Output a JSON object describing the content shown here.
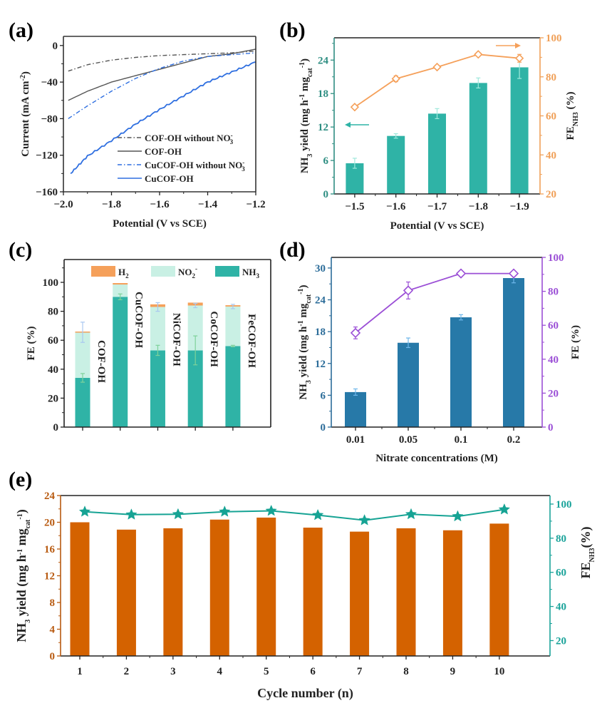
{
  "panels": {
    "a": {
      "label": "(a)"
    },
    "b": {
      "label": "(b)"
    },
    "c": {
      "label": "(c)"
    },
    "d": {
      "label": "(d)"
    },
    "e": {
      "label": "(e)"
    }
  },
  "colors": {
    "teal": "#2fb3a6",
    "orange": "#f5a05a",
    "light_teal": "#c9f0e4",
    "blue_bar": "#2779a8",
    "purple": "#9b4fd6",
    "brown": "#d46200",
    "teal_line": "#16a394",
    "gray_line": "#555555",
    "blue_line": "#2f6fe0",
    "axis_blue_d": "#2b6c99",
    "axis_teal_b": "#2e8e82",
    "axis_orange_b": "#f0a058",
    "axis_brown_e": "#b85a10",
    "axis_teal_e": "#1aa39a"
  },
  "chart_data": [
    {
      "id": "a",
      "type": "line",
      "title": "",
      "xlabel": "Potential (V vs SCE)",
      "ylabel": "Current (mA cm-2)",
      "xlim": [
        -2.0,
        -1.2
      ],
      "ylim": [
        -160,
        10
      ],
      "xticks": [
        -2.0,
        -1.8,
        -1.6,
        -1.4,
        -1.2
      ],
      "xtick_labels": [
        "−2.0",
        "−1.8",
        "−1.6",
        "−1.4",
        "−1.2"
      ],
      "yticks": [
        0,
        -40,
        -80,
        -120,
        -160
      ],
      "ytick_labels": [
        "0",
        "−40",
        "−80",
        "−120",
        "−160"
      ],
      "legend_position": "bottom-right",
      "series": [
        {
          "name": "COF-OH without NO3-",
          "legend_main": "COF-OH without NO",
          "legend_sub": "3",
          "legend_sup": "-",
          "style": "dashdot",
          "color": "#555555",
          "x": [
            -1.98,
            -1.9,
            -1.8,
            -1.7,
            -1.6,
            -1.5,
            -1.4,
            -1.3,
            -1.2
          ],
          "y": [
            -28,
            -21,
            -16,
            -13,
            -11,
            -10,
            -9,
            -8,
            -6
          ]
        },
        {
          "name": "COF-OH",
          "legend_main": "COF-OH",
          "legend_sub": "",
          "legend_sup": "",
          "style": "solid",
          "color": "#555555",
          "x": [
            -1.98,
            -1.9,
            -1.8,
            -1.7,
            -1.6,
            -1.5,
            -1.4,
            -1.3,
            -1.2
          ],
          "y": [
            -60,
            -50,
            -40,
            -33,
            -26,
            -19,
            -12,
            -9,
            -4
          ]
        },
        {
          "name": "CuCOF-OH without NO3-",
          "legend_main": "CuCOF-OH without NO",
          "legend_sub": "3",
          "legend_sup": "-",
          "style": "dashdot",
          "color": "#2f6fe0",
          "x": [
            -1.98,
            -1.9,
            -1.8,
            -1.7,
            -1.6,
            -1.5,
            -1.4,
            -1.3,
            -1.2
          ],
          "y": [
            -80,
            -66,
            -50,
            -36,
            -25,
            -17,
            -12,
            -10,
            -8
          ]
        },
        {
          "name": "CuCOF-OH",
          "legend_main": "CuCOF-OH",
          "legend_sub": "",
          "legend_sup": "",
          "style": "solid",
          "color": "#2f6fe0",
          "x": [
            -1.97,
            -1.9,
            -1.8,
            -1.7,
            -1.6,
            -1.5,
            -1.4,
            -1.3,
            -1.2
          ],
          "y": [
            -140,
            -121,
            -104,
            -86,
            -70,
            -55,
            -40,
            -29,
            -18
          ]
        }
      ]
    },
    {
      "id": "b",
      "type": "bar",
      "xlabel": "Potential (V vs SCE)",
      "ylabel": "NH3 yield (mg h-1 mgcat-1)",
      "ylabel_right": "FE NH3 (%)",
      "categories": [
        "−1.5",
        "−1.6",
        "−1.7",
        "−1.8",
        "−1.9"
      ],
      "ylim": [
        0,
        28
      ],
      "yticks": [
        0,
        6,
        12,
        18,
        24
      ],
      "ylim_right": [
        20,
        100
      ],
      "yticks_right": [
        20,
        40,
        60,
        80,
        100
      ],
      "series": [
        {
          "name": "NH3 yield",
          "axis": "left",
          "kind": "bar",
          "values": [
            5.5,
            10.4,
            14.4,
            19.9,
            22.7
          ],
          "errors": [
            0.9,
            0.4,
            0.9,
            0.9,
            2.0
          ]
        },
        {
          "name": "FE NH3",
          "axis": "right",
          "kind": "line",
          "marker": "diamond",
          "values": [
            64.5,
            79.0,
            85.0,
            91.5,
            89.5
          ],
          "errors": [
            0.5,
            1.5,
            0.5,
            0.5,
            2.0
          ]
        }
      ],
      "annotations": [
        "left arrow pointing to left axis",
        "right arrow pointing to right axis"
      ]
    },
    {
      "id": "c",
      "type": "bar",
      "stacked": true,
      "xlabel": "",
      "ylabel": "FE (%)",
      "categories": [
        "COF-OH",
        "CuCOF-OH",
        "NiCOF-OH",
        "CoCOF-OH",
        "FeCOF-OH"
      ],
      "ylim": [
        0,
        115
      ],
      "yticks": [
        0,
        20,
        40,
        60,
        80,
        100
      ],
      "legend_position": "top",
      "legend": [
        {
          "name": "H2",
          "main": "H",
          "sub": "2",
          "sup": ""
        },
        {
          "name": "NO2-",
          "main": "NO",
          "sub": "2",
          "sup": "-"
        },
        {
          "name": "NH3",
          "main": "NH",
          "sub": "3",
          "sup": ""
        }
      ],
      "series": [
        {
          "name": "NH3",
          "values": [
            34,
            90,
            53,
            53,
            56
          ],
          "errors": [
            3,
            2,
            3.5,
            10,
            0.5
          ]
        },
        {
          "name": "NO2-",
          "values": [
            31.5,
            8.5,
            30,
            31,
            27.3
          ],
          "errors": [
            7,
            0,
            3,
            1.5,
            1.5
          ]
        },
        {
          "name": "H2",
          "values": [
            0.5,
            1.0,
            1.8,
            2.0,
            0.9
          ],
          "errors": [
            0,
            0,
            0,
            0,
            0
          ]
        }
      ]
    },
    {
      "id": "d",
      "type": "bar",
      "xlabel": "Nitrate concentrations (M)",
      "ylabel": "NH3 yield (mg h-1 mgcat-1)",
      "ylabel_right": "FE (%)",
      "categories": [
        "0.01",
        "0.05",
        "0.1",
        "0.2"
      ],
      "ylim": [
        0,
        32
      ],
      "yticks": [
        0,
        6,
        12,
        18,
        24,
        30
      ],
      "ylim_right": [
        0,
        100
      ],
      "yticks_right": [
        0,
        20,
        40,
        60,
        80,
        100
      ],
      "series": [
        {
          "name": "NH3 yield",
          "axis": "left",
          "kind": "bar",
          "values": [
            6.6,
            15.9,
            20.7,
            28.1
          ],
          "errors": [
            0.6,
            0.9,
            0.5,
            0.9
          ]
        },
        {
          "name": "FE",
          "axis": "right",
          "kind": "line",
          "marker": "diamond",
          "values": [
            55.5,
            80.5,
            90.5,
            90.5
          ],
          "errors": [
            3.5,
            5.0,
            0.5,
            0.5
          ]
        }
      ]
    },
    {
      "id": "e",
      "type": "bar",
      "xlabel": "Cycle number (n)",
      "ylabel": "NH3 yield (mg h-1 mgcat-1)",
      "ylabel_right": "FE NH3 (%)",
      "categories": [
        "1",
        "2",
        "3",
        "4",
        "5",
        "6",
        "7",
        "8",
        "9",
        "10"
      ],
      "ylim": [
        0,
        24
      ],
      "yticks": [
        0,
        4,
        8,
        12,
        16,
        20,
        24
      ],
      "ylim_right": [
        11,
        105
      ],
      "yticks_right": [
        20,
        40,
        60,
        80,
        100
      ],
      "series": [
        {
          "name": "NH3 yield",
          "axis": "left",
          "kind": "bar",
          "values": [
            20.0,
            18.9,
            19.1,
            20.4,
            20.7,
            19.2,
            18.6,
            19.1,
            18.8,
            19.8
          ]
        },
        {
          "name": "FE NH3",
          "axis": "right",
          "kind": "line",
          "marker": "star",
          "values": [
            95.5,
            93.8,
            94.0,
            95.5,
            96.0,
            93.5,
            90.5,
            94.0,
            92.8,
            96.8
          ]
        }
      ]
    }
  ]
}
